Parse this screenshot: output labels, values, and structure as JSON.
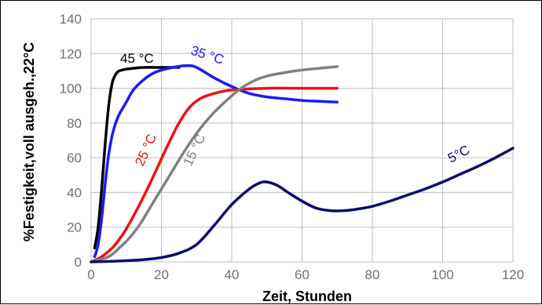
{
  "chart_data": {
    "type": "line",
    "title": "",
    "xlabel": "Zeit, Stunden",
    "ylabel": "%Festigkeit,voll ausgeh.,22°C",
    "xlim": [
      0,
      120
    ],
    "ylim": [
      0,
      140
    ],
    "xticks": [
      0,
      20,
      40,
      60,
      80,
      100,
      120
    ],
    "yticks": [
      0,
      20,
      40,
      60,
      80,
      100,
      120,
      140
    ],
    "grid": true,
    "legend": "none",
    "series": [
      {
        "name": "45 °C",
        "color": "#000000",
        "points": [
          [
            1,
            8
          ],
          [
            2,
            20
          ],
          [
            3,
            42
          ],
          [
            4,
            68
          ],
          [
            5,
            90
          ],
          [
            6,
            103
          ],
          [
            7,
            108
          ],
          [
            8,
            110
          ],
          [
            10,
            111
          ],
          [
            12,
            111.5
          ],
          [
            15,
            112
          ],
          [
            20,
            112
          ],
          [
            25,
            112
          ]
        ]
      },
      {
        "name": "35 °C",
        "color": "#1a1aff",
        "points": [
          [
            1,
            3
          ],
          [
            2,
            10
          ],
          [
            3,
            25
          ],
          [
            4,
            45
          ],
          [
            5,
            62
          ],
          [
            6,
            73
          ],
          [
            7,
            80
          ],
          [
            8,
            85
          ],
          [
            10,
            92
          ],
          [
            12,
            99
          ],
          [
            15,
            105
          ],
          [
            18,
            109
          ],
          [
            22,
            111.5
          ],
          [
            27,
            113
          ],
          [
            30,
            112
          ],
          [
            35,
            106
          ],
          [
            40,
            101
          ],
          [
            45,
            97
          ],
          [
            50,
            95
          ],
          [
            55,
            94
          ],
          [
            60,
            93
          ],
          [
            65,
            92.5
          ],
          [
            70,
            92
          ]
        ]
      },
      {
        "name": "25 °C",
        "color": "#ee1111",
        "points": [
          [
            0,
            0
          ],
          [
            3,
            3
          ],
          [
            6,
            8
          ],
          [
            8,
            13
          ],
          [
            10,
            19
          ],
          [
            13,
            30
          ],
          [
            16,
            42
          ],
          [
            19,
            55
          ],
          [
            22,
            68
          ],
          [
            25,
            80
          ],
          [
            28,
            89
          ],
          [
            31,
            94
          ],
          [
            35,
            97
          ],
          [
            40,
            99
          ],
          [
            50,
            100
          ],
          [
            60,
            100
          ],
          [
            70,
            100
          ]
        ]
      },
      {
        "name": "15 °C",
        "color": "#808080",
        "points": [
          [
            0,
            0
          ],
          [
            5,
            3
          ],
          [
            8,
            8
          ],
          [
            11,
            14
          ],
          [
            14,
            22
          ],
          [
            17,
            32
          ],
          [
            20,
            42
          ],
          [
            23,
            52
          ],
          [
            26,
            62
          ],
          [
            30,
            74
          ],
          [
            34,
            84
          ],
          [
            38,
            92
          ],
          [
            42,
            99
          ],
          [
            46,
            104
          ],
          [
            50,
            107
          ],
          [
            55,
            109
          ],
          [
            60,
            110.5
          ],
          [
            65,
            111.5
          ],
          [
            70,
            112.5
          ]
        ]
      },
      {
        "name": "5°C",
        "color": "#0a0a70",
        "points": [
          [
            0,
            0
          ],
          [
            5,
            0.3
          ],
          [
            10,
            0.7
          ],
          [
            15,
            1.3
          ],
          [
            20,
            2.5
          ],
          [
            25,
            5
          ],
          [
            30,
            10
          ],
          [
            35,
            21
          ],
          [
            40,
            33
          ],
          [
            45,
            42
          ],
          [
            48,
            45.5
          ],
          [
            50,
            46
          ],
          [
            53,
            44
          ],
          [
            56,
            40
          ],
          [
            60,
            35
          ],
          [
            64,
            31
          ],
          [
            68,
            29.5
          ],
          [
            72,
            29.5
          ],
          [
            76,
            30.5
          ],
          [
            80,
            32
          ],
          [
            85,
            35
          ],
          [
            90,
            38.5
          ],
          [
            95,
            42
          ],
          [
            100,
            46
          ],
          [
            105,
            50.5
          ],
          [
            110,
            55
          ],
          [
            115,
            60
          ],
          [
            120,
            65.5
          ]
        ]
      }
    ]
  }
}
